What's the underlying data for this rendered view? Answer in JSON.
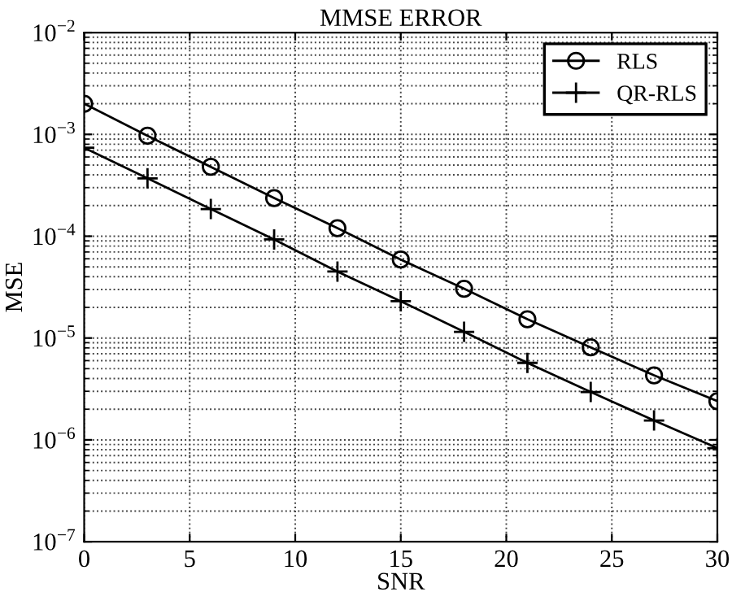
{
  "chart_data": {
    "type": "line",
    "title": "MMSE ERROR",
    "xlabel": "SNR",
    "ylabel": "MSE",
    "x": [
      0,
      3,
      6,
      9,
      12,
      15,
      18,
      21,
      24,
      27,
      30
    ],
    "series": [
      {
        "name": "RLS",
        "color": "#000000",
        "marker": "circle",
        "values": [
          0.002,
          0.00097,
          0.00048,
          0.000237,
          0.00012,
          5.9e-05,
          3.05e-05,
          1.53e-05,
          8.1e-06,
          4.3e-06,
          2.4e-06
        ]
      },
      {
        "name": "QR-RLS",
        "color": "#000000",
        "marker": "cross",
        "values": [
          0.00074,
          0.00037,
          0.000185,
          9.3e-05,
          4.5e-05,
          2.3e-05,
          1.15e-05,
          5.7e-06,
          2.95e-06,
          1.55e-06,
          8.3e-07
        ]
      }
    ],
    "log": "y",
    "xlim": [
      0,
      30
    ],
    "xticks": [
      0,
      5,
      10,
      15,
      20,
      25,
      30
    ],
    "ylim": [
      1e-07,
      0.01
    ],
    "yticks": [
      {
        "value": 1e-07,
        "label": "10$^{−7}$"
      },
      {
        "value": 1e-06,
        "label": "10$^{−6}$"
      },
      {
        "value": 1e-05,
        "label": "10$^{−5}$"
      },
      {
        "value": 0.0001,
        "label": "10$^{−4}$"
      },
      {
        "value": 0.001,
        "label": "10$^{−3}$"
      },
      {
        "value": 0.01,
        "label": "10$^{−2}$"
      }
    ],
    "grid": true,
    "legend": "top right",
    "line_style": "solid"
  }
}
